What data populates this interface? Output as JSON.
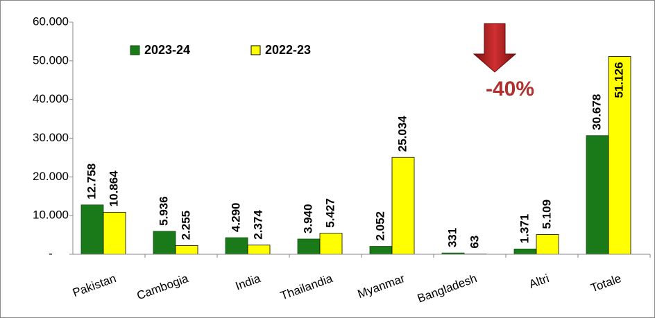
{
  "chart_data": {
    "type": "bar",
    "categories": [
      "Pakistan",
      "Cambogia",
      "India",
      "Thailandia",
      "Myanmar",
      "Bangladesh",
      "Altri",
      "Totale"
    ],
    "series": [
      {
        "name": "2023-24",
        "color": "#1a7a1a",
        "values": [
          12758,
          5936,
          4290,
          3940,
          2052,
          331,
          1371,
          30678
        ],
        "value_labels": [
          "12.758",
          "5.936",
          "4.290",
          "3.940",
          "2.052",
          "331",
          "1.371",
          "30.678"
        ]
      },
      {
        "name": "2022-23",
        "color": "#ffff00",
        "values": [
          10864,
          2255,
          2374,
          5427,
          25034,
          63,
          5109,
          51126
        ],
        "value_labels": [
          "10.864",
          "2.255",
          "2.374",
          "5.427",
          "25.034",
          "63",
          "5.109",
          "51.126"
        ]
      }
    ],
    "ylim": [
      0,
      60000
    ],
    "yticks": [
      {
        "value": 0,
        "label": "-"
      },
      {
        "value": 10000,
        "label": "10.000"
      },
      {
        "value": 20000,
        "label": "20.000"
      },
      {
        "value": 30000,
        "label": "30.000"
      },
      {
        "value": 40000,
        "label": "40.000"
      },
      {
        "value": 50000,
        "label": "50.000"
      },
      {
        "value": 60000,
        "label": "60.000"
      }
    ],
    "annotation": "-40%",
    "grid": false
  }
}
